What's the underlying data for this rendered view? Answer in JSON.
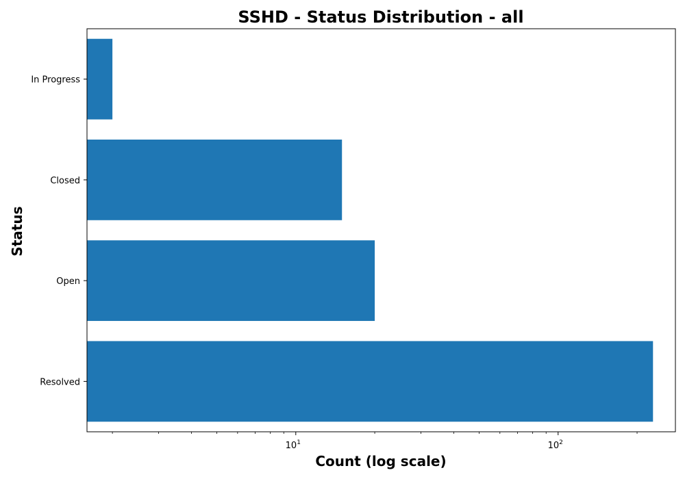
{
  "chart_data": {
    "type": "bar",
    "orientation": "horizontal",
    "title": "SSHD - Status Distribution - all",
    "xlabel": "Count (log scale)",
    "ylabel": "Status",
    "x_scale": "log",
    "xlim": [
      1.6,
      280
    ],
    "categories": [
      "Resolved",
      "Open",
      "Closed",
      "In Progress"
    ],
    "values": [
      230,
      20,
      15,
      2
    ],
    "x_major_ticks": [
      {
        "base": "10",
        "exponent": "1",
        "value": 10
      },
      {
        "base": "10",
        "exponent": "2",
        "value": 100
      }
    ],
    "x_minor_ticks": [
      2,
      3,
      4,
      5,
      6,
      7,
      8,
      9,
      20,
      30,
      40,
      50,
      60,
      70,
      80,
      90,
      200
    ],
    "grid": false,
    "legend": "none",
    "colors": {
      "bar": "#1f77b4",
      "axis": "#000000",
      "background": "#ffffff"
    }
  }
}
